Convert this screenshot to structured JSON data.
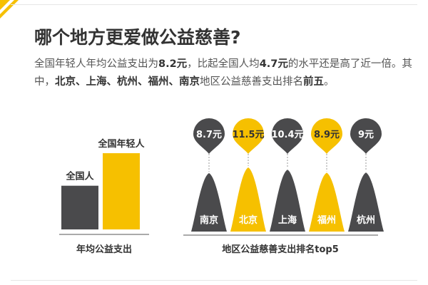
{
  "title": "哪个地方更爱做公益慈善?",
  "description": {
    "s1": "全国年轻人年均公益支出为",
    "v1": "8.2元",
    "s2": "，比起全国人均",
    "v2": "4.7元",
    "s3": "的水平还是高了近一倍。其中，",
    "cities": "北京、上海、杭州、福州、南京",
    "s4": "地区公益慈善支出排名",
    "rank": "前五",
    "s5": "。"
  },
  "colors": {
    "gray": "#4a4a4c",
    "yellow": "#f6c000",
    "label_dark": "#333333"
  },
  "chart_data": [
    {
      "type": "bar",
      "categories": [
        "全国人",
        "全国年轻人"
      ],
      "values": [
        4.7,
        8.2
      ],
      "colors": [
        "#4a4a4c",
        "#f6c000"
      ],
      "xlabel": "年均公益支出",
      "ylim": [
        0,
        8.2
      ],
      "grid": false
    },
    {
      "type": "bar",
      "categories": [
        "南京",
        "北京",
        "上海",
        "福州",
        "杭州"
      ],
      "values": [
        8.7,
        11.5,
        10.4,
        8.9,
        9
      ],
      "value_labels": [
        "8.7元",
        "11.5元",
        "10.4元",
        "8.9元",
        "9元"
      ],
      "colors": [
        "#4a4a4c",
        "#f6c000",
        "#4a4a4c",
        "#f6c000",
        "#4a4a4c"
      ],
      "xlabel": "地区公益慈善支出排名top5",
      "grid": false
    }
  ]
}
